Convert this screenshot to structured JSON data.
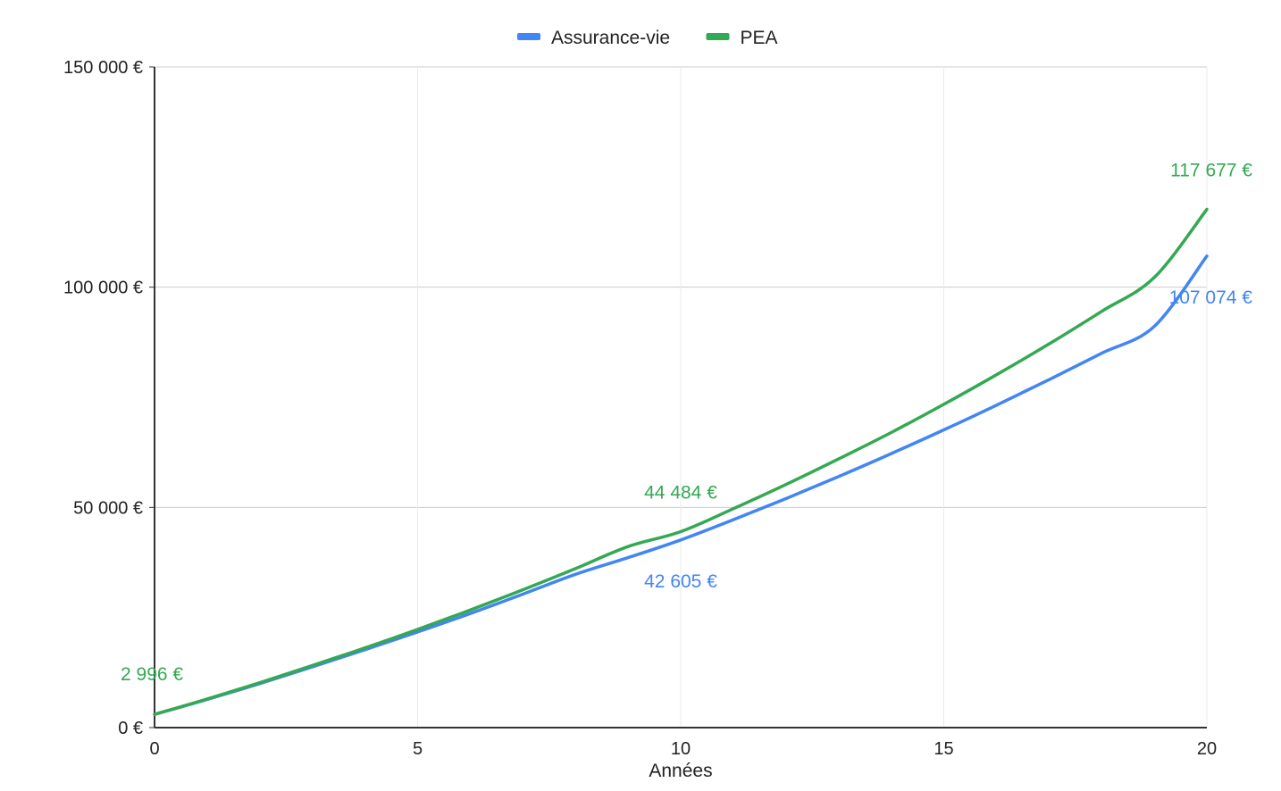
{
  "chart_data": {
    "type": "line",
    "xlabel": "Années",
    "x_ticks": [
      0,
      5,
      10,
      15,
      20
    ],
    "y_tick_labels": [
      "0 €",
      "50 000 €",
      "100 000 €",
      "150 000 €"
    ],
    "y_ticks": [
      0,
      50000,
      100000,
      150000
    ],
    "xlim": [
      0,
      20
    ],
    "ylim": [
      0,
      150000
    ],
    "grid": true,
    "legend_position": "top",
    "x": [
      0,
      1,
      2,
      3,
      4,
      5,
      6,
      7,
      8,
      9,
      10,
      11,
      12,
      13,
      14,
      15,
      16,
      17,
      18,
      19,
      20
    ],
    "series": [
      {
        "name": "Assurance-vie",
        "color": "#4285f4",
        "values": [
          2996,
          6400,
          10000,
          13800,
          17700,
          21700,
          25900,
          30300,
          34800,
          38600,
          42605,
          47200,
          52000,
          57000,
          62200,
          67600,
          73200,
          79000,
          85000,
          91100,
          107074
        ]
      },
      {
        "name": "PEA",
        "color": "#34a853",
        "values": [
          2996,
          6500,
          10200,
          14100,
          18100,
          22300,
          26700,
          31300,
          36100,
          41100,
          44484,
          49700,
          55200,
          61000,
          67000,
          73400,
          80100,
          87100,
          94500,
          102200,
          117677
        ]
      }
    ],
    "data_labels": [
      {
        "series": "PEA",
        "x": 0,
        "text": "2 996 €"
      },
      {
        "series": "PEA",
        "x": 10,
        "text": "44 484 €"
      },
      {
        "series": "Assurance-vie",
        "x": 10,
        "text": "42 605 €"
      },
      {
        "series": "PEA",
        "x": 20,
        "text": "117 677 €"
      },
      {
        "series": "Assurance-vie",
        "x": 20,
        "text": "107 074 €"
      }
    ]
  }
}
